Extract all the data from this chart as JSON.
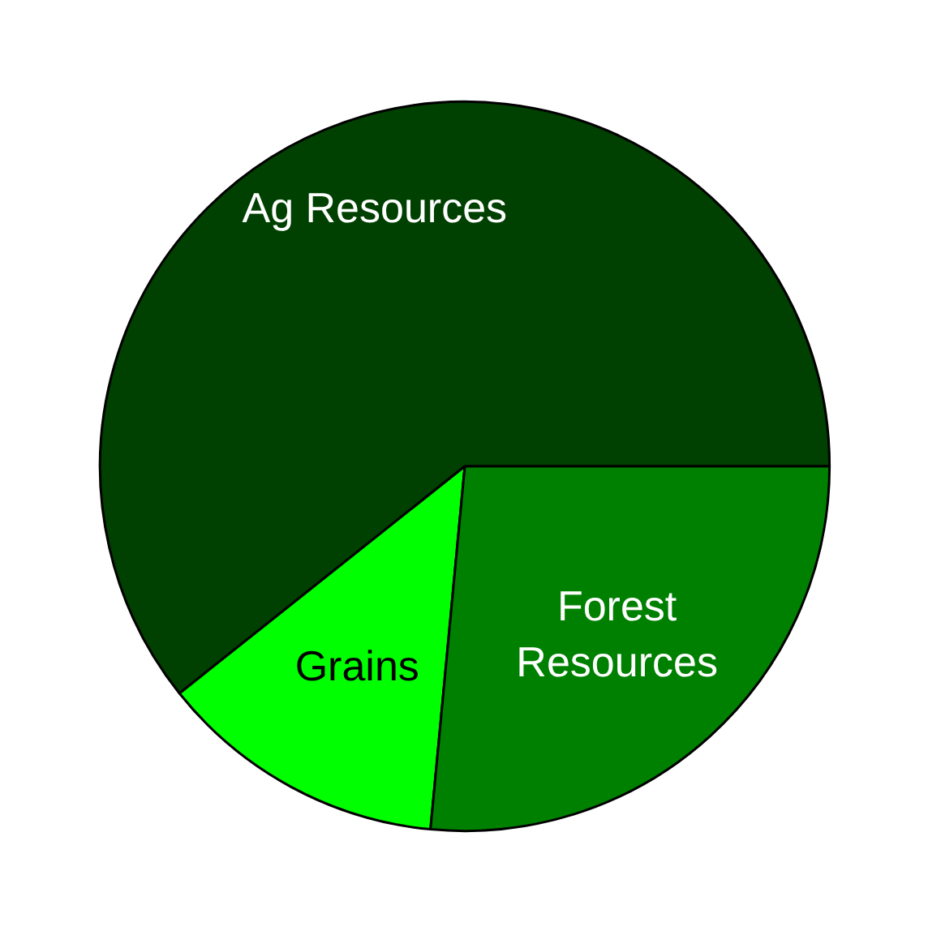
{
  "chart_data": {
    "type": "pie",
    "categories": [
      "Ag Resources",
      "Grains",
      "Forest Resources"
    ],
    "values": [
      60.7,
      12.8,
      26.5
    ],
    "colors": [
      "#004000",
      "#00ff00",
      "#008000"
    ]
  }
}
